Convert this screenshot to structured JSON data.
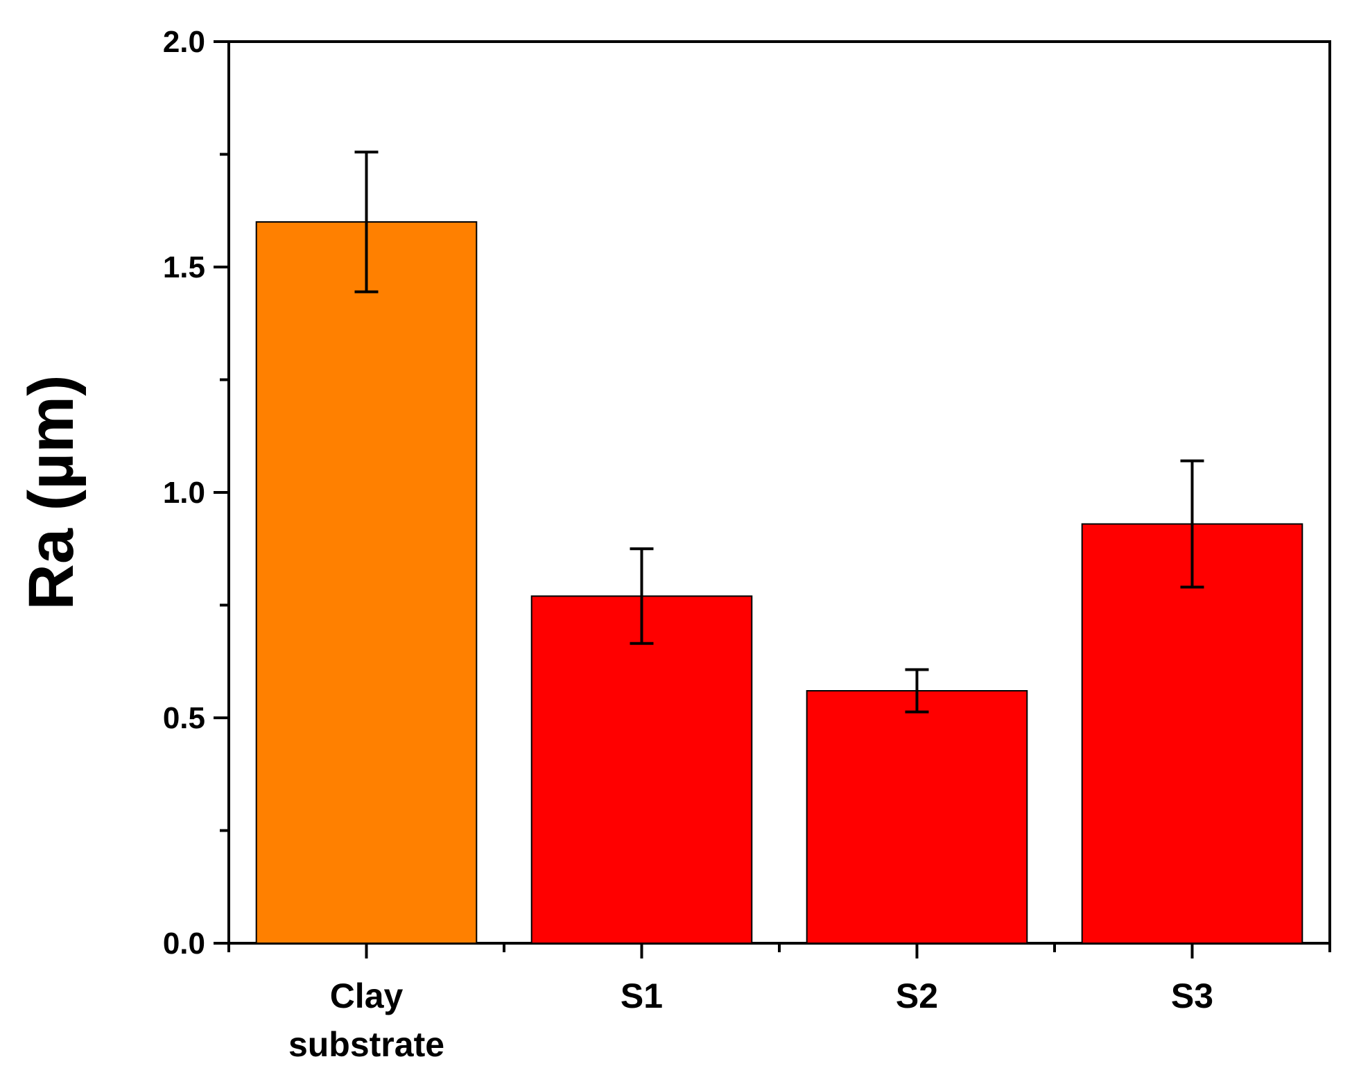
{
  "chart_data": {
    "type": "bar",
    "title": "",
    "xlabel": "",
    "ylabel": "Ra (µm)",
    "ylim": [
      0,
      2.0
    ],
    "yticks": [
      "0.0",
      "0.5",
      "1.0",
      "1.5",
      "2.0"
    ],
    "grid": false,
    "categories": [
      [
        "Clay",
        "substrate"
      ],
      [
        "S1"
      ],
      [
        "S2"
      ],
      [
        "S3"
      ]
    ],
    "values": [
      1.6,
      0.77,
      0.56,
      0.93
    ],
    "errors": [
      0.155,
      0.105,
      0.047,
      0.14
    ],
    "colors": [
      "#FF8000",
      "#FF0000",
      "#FF0000",
      "#FF0000"
    ]
  }
}
